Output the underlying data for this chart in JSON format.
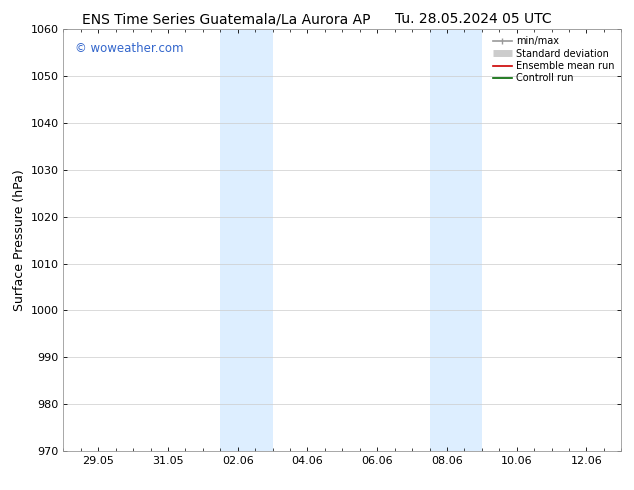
{
  "title_left": "ENS Time Series Guatemala/La Aurora AP",
  "title_right": "Tu. 28.05.2024 05 UTC",
  "ylabel": "Surface Pressure (hPa)",
  "ylim": [
    970,
    1060
  ],
  "yticks": [
    970,
    980,
    990,
    1000,
    1010,
    1020,
    1030,
    1040,
    1050,
    1060
  ],
  "xlim_min": 0,
  "xlim_max": 16,
  "xtick_labels": [
    "29.05",
    "31.05",
    "02.06",
    "04.06",
    "06.06",
    "08.06",
    "10.06",
    "12.06"
  ],
  "xtick_positions": [
    1,
    3,
    5,
    7,
    9,
    11,
    13,
    15
  ],
  "shade_regions": [
    {
      "start": 4.5,
      "end": 6.0
    },
    {
      "start": 10.5,
      "end": 12.0
    }
  ],
  "shade_color": "#ddeeff",
  "watermark": "© woweather.com",
  "watermark_color": "#3366cc",
  "legend_items": [
    {
      "label": "min/max",
      "color": "#999999",
      "lw": 1.2
    },
    {
      "label": "Standard deviation",
      "color": "#cccccc",
      "lw": 5
    },
    {
      "label": "Ensemble mean run",
      "color": "#cc0000",
      "lw": 1.2
    },
    {
      "label": "Controll run",
      "color": "#006600",
      "lw": 1.2
    }
  ],
  "background_color": "#ffffff",
  "grid_color": "#cccccc",
  "spine_color": "#999999",
  "title_fontsize": 10,
  "ylabel_fontsize": 9,
  "tick_fontsize": 8,
  "legend_fontsize": 7,
  "watermark_fontsize": 8.5
}
